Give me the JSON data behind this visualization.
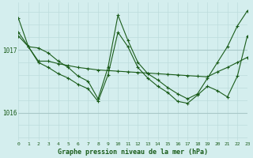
{
  "title": "Graphe pression niveau de la mer (hPa)",
  "bg_color": "#d4eeee",
  "line_color": "#1a5c1a",
  "grid_major_color": "#a8c8c8",
  "grid_minor_color": "#bcdcdc",
  "xlim": [
    0,
    23
  ],
  "ylim": [
    1015.55,
    1017.75
  ],
  "yticks": [
    1016,
    1017
  ],
  "xticks": [
    0,
    1,
    2,
    3,
    4,
    5,
    6,
    7,
    8,
    9,
    10,
    11,
    12,
    13,
    14,
    15,
    16,
    17,
    18,
    19,
    20,
    21,
    22,
    23
  ],
  "series1_x": [
    0,
    1,
    2,
    3,
    4,
    5,
    6,
    7,
    8,
    9,
    10,
    11,
    12,
    13,
    14,
    15,
    16,
    17,
    18,
    19,
    20,
    21,
    22,
    23
  ],
  "series1_y": [
    1017.5,
    1017.05,
    1016.82,
    1016.82,
    1016.78,
    1016.75,
    1016.72,
    1016.7,
    1016.68,
    1016.67,
    1016.66,
    1016.65,
    1016.64,
    1016.63,
    1016.62,
    1016.61,
    1016.6,
    1016.59,
    1016.58,
    1016.57,
    1016.65,
    1016.72,
    1016.8,
    1016.88
  ],
  "series2_x": [
    0,
    1,
    2,
    3,
    4,
    5,
    6,
    7,
    8,
    9,
    10,
    11,
    12,
    13,
    14,
    15,
    16,
    17,
    18,
    19,
    20,
    21,
    22,
    23
  ],
  "series2_y": [
    1017.28,
    1017.05,
    1017.03,
    1016.95,
    1016.82,
    1016.72,
    1016.58,
    1016.5,
    1016.22,
    1016.72,
    1017.55,
    1017.15,
    1016.8,
    1016.62,
    1016.52,
    1016.4,
    1016.3,
    1016.22,
    1016.3,
    1016.55,
    1016.8,
    1017.05,
    1017.38,
    1017.62
  ],
  "series3_x": [
    0,
    1,
    2,
    3,
    4,
    5,
    6,
    7,
    8,
    9,
    10,
    11,
    12,
    13,
    14,
    15,
    16,
    17,
    18,
    19,
    20,
    21,
    22,
    23
  ],
  "series3_y": [
    1017.22,
    1017.05,
    1016.8,
    1016.72,
    1016.62,
    1016.55,
    1016.45,
    1016.38,
    1016.18,
    1016.6,
    1017.28,
    1017.05,
    1016.72,
    1016.55,
    1016.42,
    1016.32,
    1016.18,
    1016.15,
    1016.28,
    1016.42,
    1016.35,
    1016.25,
    1016.58,
    1017.22
  ]
}
